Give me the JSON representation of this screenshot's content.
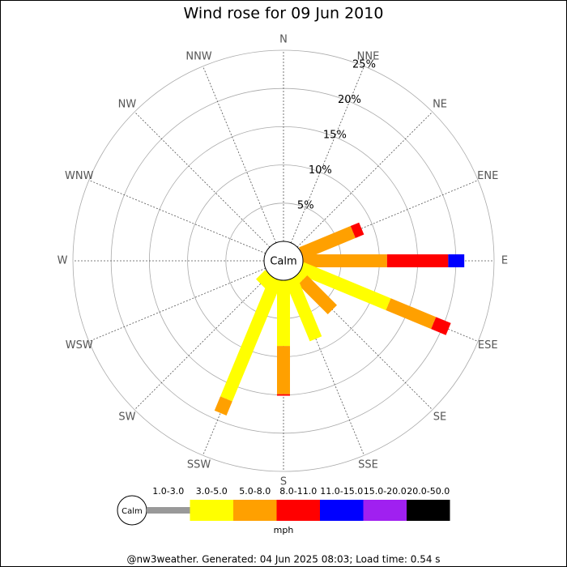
{
  "chart_data": {
    "type": "windrose",
    "title": "Wind rose for 09 Jun 2010",
    "categories": [
      "N",
      "NNE",
      "NE",
      "ENE",
      "E",
      "ESE",
      "SE",
      "SSE",
      "S",
      "SSW",
      "SW",
      "WSW",
      "W",
      "WNW",
      "NW",
      "NNW"
    ],
    "series": [
      {
        "name": "1.0-3.0",
        "color": "#999999",
        "values": [
          0,
          0,
          0,
          0,
          0,
          0,
          0,
          0,
          0,
          0,
          0,
          0,
          0,
          0,
          0,
          0
        ]
      },
      {
        "name": "3.0-5.0",
        "color": "#ffff00",
        "values": [
          0,
          0,
          0,
          0,
          0,
          12.3,
          1.0,
          8.5,
          8.6,
          17.0,
          1.7,
          0,
          0,
          0,
          0,
          0
        ]
      },
      {
        "name": "5.0-8.0",
        "color": "#ffa000",
        "values": [
          0,
          0,
          0,
          7.3,
          11.0,
          6.4,
          5.5,
          0,
          6.3,
          2.0,
          0,
          0,
          0,
          0,
          0,
          0
        ]
      },
      {
        "name": "8.0-11.0",
        "color": "#ff0000",
        "values": [
          0,
          0,
          0,
          1.2,
          8.0,
          2.1,
          0,
          0,
          0.2,
          0,
          0,
          0,
          0,
          0,
          0,
          0
        ]
      },
      {
        "name": "11.0-15.0",
        "color": "#0000ff",
        "values": [
          0,
          0,
          0,
          0,
          2.1,
          0,
          0,
          0,
          0,
          0,
          0,
          0,
          0,
          0,
          0,
          0
        ]
      },
      {
        "name": "15.0-20.0",
        "color": "#a020f0",
        "values": [
          0,
          0,
          0,
          0,
          0,
          0,
          0,
          0,
          0,
          0,
          0,
          0,
          0,
          0,
          0,
          0
        ]
      },
      {
        "name": "20.0-50.0",
        "color": "#000000",
        "values": [
          0,
          0,
          0,
          0,
          0,
          0,
          0,
          0,
          0,
          0,
          0,
          0,
          0,
          0,
          0,
          0
        ]
      }
    ],
    "rlim": [
      0,
      25
    ],
    "rticks": [
      {
        "value": 5,
        "label": "5%"
      },
      {
        "value": 10,
        "label": "10%"
      },
      {
        "value": 15,
        "label": "15%"
      },
      {
        "value": 20,
        "label": "20%"
      },
      {
        "value": 25,
        "label": "25%"
      }
    ],
    "calm_label": "Calm",
    "legend_unit": "mph",
    "footer": "@nw3weather. Generated: 04 Jun 2025 08:03; Load time: 0.54 s"
  }
}
